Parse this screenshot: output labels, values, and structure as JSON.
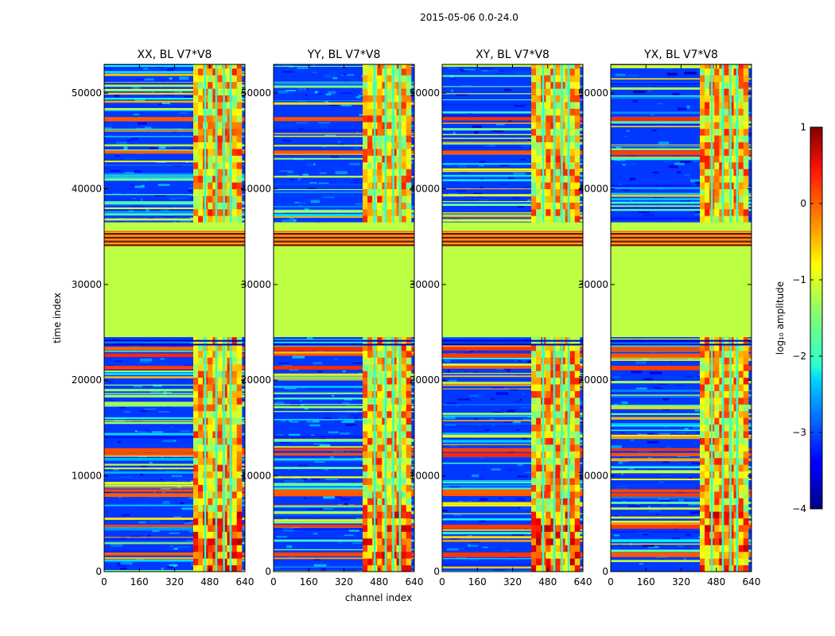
{
  "chart_data": {
    "type": "heatmap",
    "suptitle": "2015-05-06 0.0-24.0",
    "xlabel": "channel index",
    "ylabel": "time index",
    "x_range": [
      0,
      640
    ],
    "y_range": [
      0,
      53000
    ],
    "x_ticks": [
      0,
      160,
      320,
      480,
      640
    ],
    "y_ticks": [
      0,
      10000,
      20000,
      30000,
      40000,
      50000
    ],
    "panels": [
      {
        "title": "XX, BL V7*V8",
        "polarization": "XX"
      },
      {
        "title": "YY, BL V7*V8",
        "polarization": "YY"
      },
      {
        "title": "XY, BL V7*V8",
        "polarization": "XY"
      },
      {
        "title": "YX, BL V7*V8",
        "polarization": "YX"
      }
    ],
    "colorbar": {
      "label": "log₁₀ amplitude",
      "vmin": -4,
      "vmax": 1,
      "ticks": [
        "1",
        "0",
        "−1",
        "−2",
        "−3",
        "−4"
      ],
      "colormap": "jet"
    },
    "features": {
      "flat_band_time": [
        24500,
        36500
      ],
      "flat_band_value": -1.2,
      "dark_stripes_time": [
        34000,
        35600
      ],
      "high_amplitude_channels": [
        405,
        610
      ],
      "bright_time_ranges": [
        [
          0,
          24500
        ],
        [
          36500,
          53000
        ]
      ]
    }
  }
}
